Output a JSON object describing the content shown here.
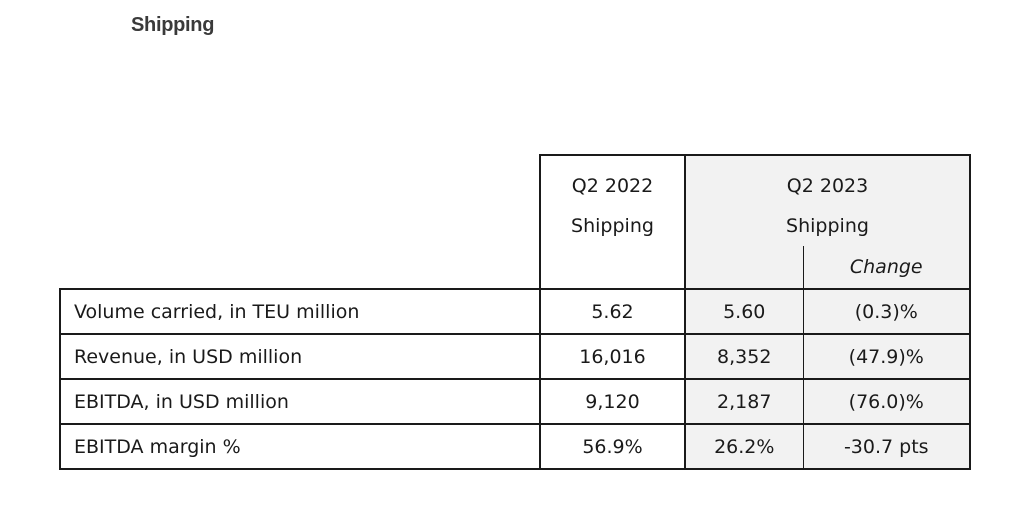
{
  "heading": "Shipping",
  "table": {
    "header": {
      "q2_2022": {
        "line1": "Q2 2022",
        "line2": "Shipping"
      },
      "q2_2023": {
        "line1": "Q2 2023",
        "line2": "Shipping"
      },
      "change_label": "Change"
    },
    "rows": [
      {
        "label": "Volume carried, in TEU million",
        "q2_2022": "5.62",
        "q2_2023": "5.60",
        "change": "(0.3)%"
      },
      {
        "label": "Revenue, in USD million",
        "q2_2022": "16,016",
        "q2_2023": "8,352",
        "change": "(47.9)%"
      },
      {
        "label": "EBITDA, in USD million",
        "q2_2022": "9,120",
        "q2_2023": "2,187",
        "change": "(76.0)%"
      },
      {
        "label": "EBITDA margin %",
        "q2_2022": "56.9%",
        "q2_2023": "26.2%",
        "change": "-30.7 pts"
      }
    ]
  },
  "colors": {
    "shade": "#f2f2f2",
    "border": "#1a1a1a",
    "heading": "#3a3a3a"
  }
}
